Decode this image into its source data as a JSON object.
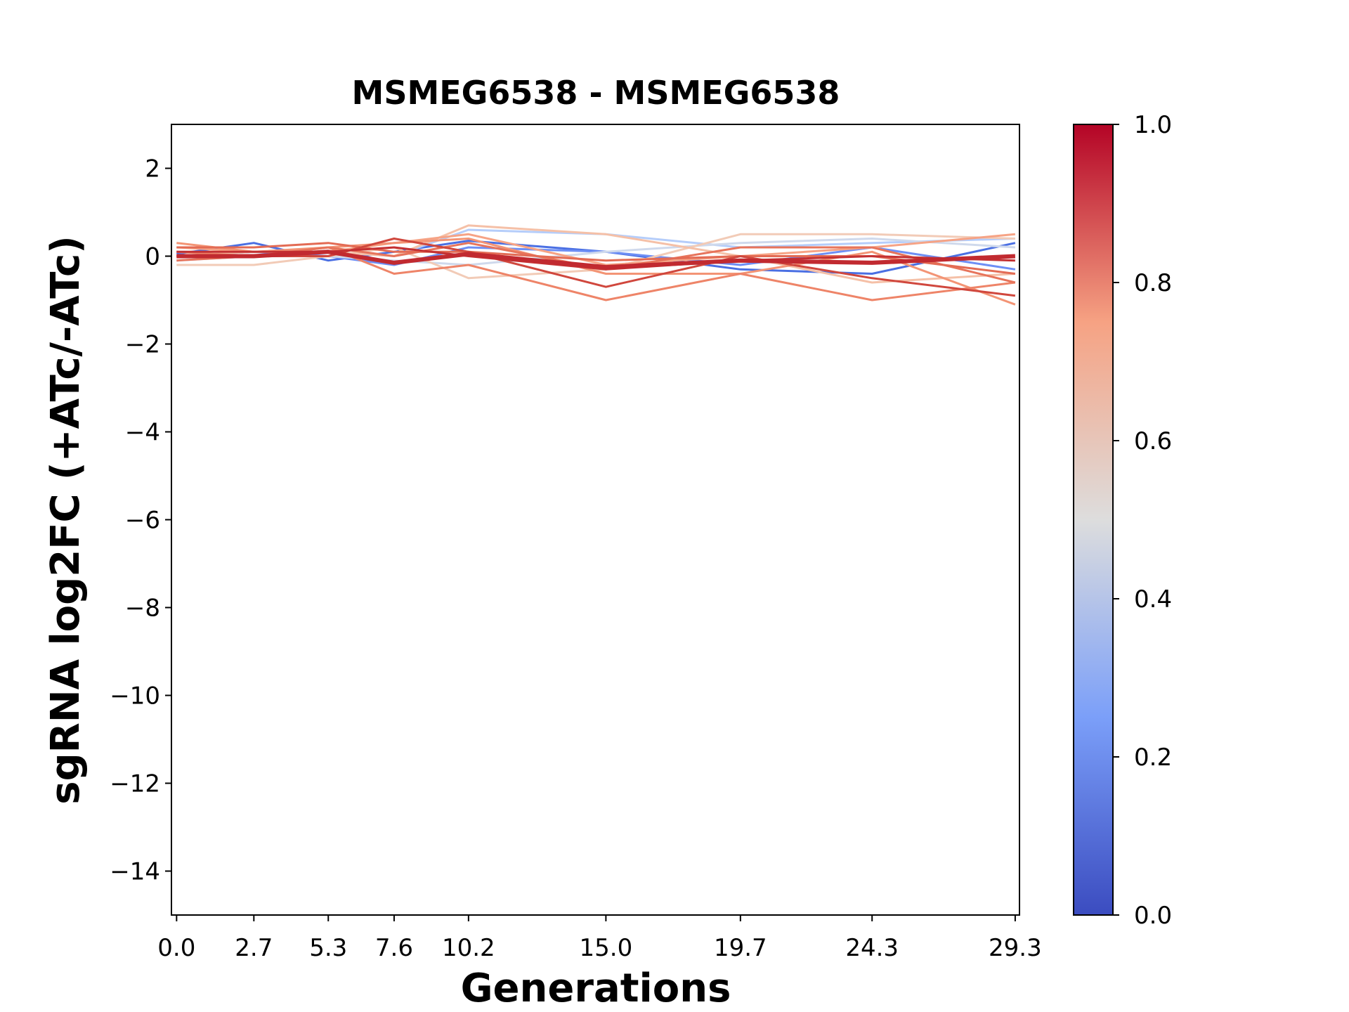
{
  "chart_data": {
    "type": "line",
    "title": "MSMEG6538 - MSMEG6538",
    "xlabel": "Generations",
    "ylabel": "sgRNA log2FC (+ATc/-ATc)",
    "x": [
      0.0,
      2.7,
      5.3,
      7.6,
      10.2,
      15.0,
      19.7,
      24.3,
      29.3
    ],
    "xlim": [
      -0.18,
      29.45
    ],
    "xticks": [
      {
        "value": 0,
        "label": "0.0"
      },
      2.7,
      5.3,
      7.6,
      10.2,
      {
        "value": 15,
        "label": "15.0"
      },
      19.7,
      24.3,
      29.3
    ],
    "ylim": [
      -15,
      3
    ],
    "yticks": [
      2,
      0,
      {
        "value": -2,
        "label": "−2"
      },
      {
        "value": -4,
        "label": "−4"
      },
      {
        "value": -6,
        "label": "−6"
      },
      {
        "value": -8,
        "label": "−8"
      },
      {
        "value": -10,
        "label": "−10"
      },
      {
        "value": -12,
        "label": "−12"
      },
      {
        "value": -14,
        "label": "−14"
      }
    ],
    "series": [
      {
        "color": "#4a6fe3",
        "linewidth": 3,
        "values": [
          0.05,
          0.3,
          -0.1,
          0.1,
          0.35,
          0.1,
          -0.3,
          -0.4,
          0.3
        ]
      },
      {
        "color": "#6e8ff5",
        "linewidth": 3,
        "values": [
          0.0,
          0.1,
          0.0,
          -0.2,
          0.2,
          0.1,
          -0.2,
          0.2,
          -0.3
        ]
      },
      {
        "color": "#b5cdfa",
        "linewidth": 3,
        "values": [
          -0.1,
          0.0,
          0.1,
          0.0,
          0.6,
          0.5,
          0.2,
          0.3,
          0.4
        ]
      },
      {
        "color": "#cfd9ec",
        "linewidth": 3,
        "values": [
          0.1,
          0.0,
          0.0,
          -0.1,
          -0.2,
          0.1,
          0.3,
          0.4,
          0.2
        ]
      },
      {
        "color": "#f2cbb7",
        "linewidth": 3,
        "values": [
          -0.2,
          -0.2,
          0.0,
          0.2,
          -0.5,
          -0.3,
          0.5,
          0.5,
          0.4
        ]
      },
      {
        "color": "#f5c0a7",
        "linewidth": 3,
        "values": [
          0.0,
          0.1,
          0.1,
          0.0,
          0.7,
          0.5,
          0.0,
          -0.6,
          -0.4
        ]
      },
      {
        "color": "#f6a385",
        "linewidth": 3,
        "values": [
          0.2,
          0.1,
          0.1,
          0.3,
          0.5,
          -0.2,
          0.0,
          0.2,
          0.5
        ]
      },
      {
        "color": "#f39475",
        "linewidth": 3,
        "values": [
          0.3,
          0.1,
          0.2,
          0.3,
          0.4,
          -0.4,
          -0.4,
          0.1,
          -1.1
        ]
      },
      {
        "color": "#ee8468",
        "linewidth": 3,
        "values": [
          0.1,
          0.0,
          0.2,
          -0.4,
          -0.2,
          -1.0,
          -0.4,
          -1.0,
          -0.6
        ]
      },
      {
        "color": "#e7745b",
        "linewidth": 3,
        "values": [
          -0.1,
          0.0,
          0.2,
          0.0,
          0.3,
          -0.3,
          0.2,
          0.2,
          -0.6
        ]
      },
      {
        "color": "#e36b54",
        "linewidth": 3,
        "values": [
          0.2,
          0.2,
          0.3,
          0.1,
          0.1,
          -0.1,
          0.0,
          0.0,
          -0.4
        ]
      },
      {
        "color": "#d0473d",
        "linewidth": 3,
        "values": [
          0.0,
          0.0,
          0.0,
          0.4,
          0.1,
          -0.7,
          0.0,
          -0.5,
          -0.9
        ]
      },
      {
        "color": "#c43032",
        "linewidth": 3,
        "values": [
          0.1,
          0.1,
          0.1,
          0.2,
          0.0,
          -0.3,
          -0.1,
          0.0,
          -0.1
        ]
      },
      {
        "color": "#c12a30",
        "linewidth": 6,
        "values": [
          0.0,
          0.0,
          0.1,
          -0.15,
          0.05,
          -0.25,
          -0.1,
          -0.15,
          0.0
        ]
      }
    ],
    "colorbar": {
      "ylim": [
        0,
        1
      ],
      "yticks": [
        {
          "value": 0,
          "label": "0.0"
        },
        0.2,
        0.4,
        0.6,
        0.8,
        {
          "value": 1,
          "label": "1.0"
        }
      ],
      "colors": [
        "#3b4cc0",
        "#7b9ff9",
        "#dddddd",
        "#f6a283",
        "#b40426"
      ]
    }
  }
}
